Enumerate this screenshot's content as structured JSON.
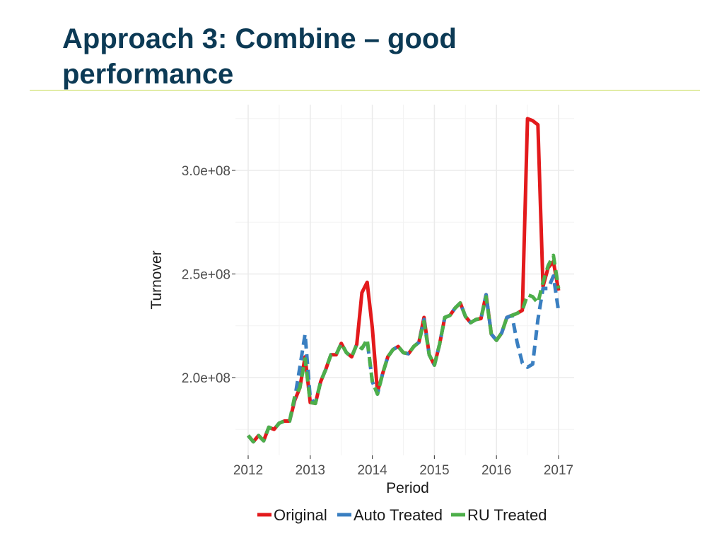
{
  "slide": {
    "title": "Approach 3: Combine – good performance"
  },
  "colors": {
    "title": "#0c3a55",
    "rule": "#c5d94f",
    "original": "#e31a1c",
    "auto_treated": "#3a7fc1",
    "ru_treated": "#4daf4a"
  },
  "chart_data": {
    "type": "line",
    "xlabel": "Period",
    "ylabel": "Turnover",
    "xlim": [
      2012,
      2017.05
    ],
    "ylim": [
      167000000,
      327000000
    ],
    "x_ticks": [
      2012,
      2013,
      2014,
      2015,
      2016,
      2017
    ],
    "x_tick_labels": [
      "2012",
      "2013",
      "2014",
      "2015",
      "2016",
      "2017"
    ],
    "y_ticks": [
      200000000,
      250000000,
      300000000
    ],
    "y_tick_labels": [
      "2.0e+08",
      "2.5e+08",
      "3.0e+08"
    ],
    "grid": true,
    "legend_position": "bottom",
    "x": [
      2012.0,
      2012.083,
      2012.167,
      2012.25,
      2012.333,
      2012.417,
      2012.5,
      2012.583,
      2012.667,
      2012.75,
      2012.833,
      2012.917,
      2013.0,
      2013.083,
      2013.167,
      2013.25,
      2013.333,
      2013.417,
      2013.5,
      2013.583,
      2013.667,
      2013.75,
      2013.833,
      2013.917,
      2014.0,
      2014.083,
      2014.167,
      2014.25,
      2014.333,
      2014.417,
      2014.5,
      2014.583,
      2014.667,
      2014.75,
      2014.833,
      2014.917,
      2015.0,
      2015.083,
      2015.167,
      2015.25,
      2015.333,
      2015.417,
      2015.5,
      2015.583,
      2015.667,
      2015.75,
      2015.833,
      2015.917,
      2016.0,
      2016.083,
      2016.167,
      2016.25,
      2016.333,
      2016.417,
      2016.5,
      2016.583,
      2016.667,
      2016.75,
      2016.833,
      2016.917,
      2017.0
    ],
    "series": [
      {
        "name": "Original",
        "color": "#e31a1c",
        "dash": "solid",
        "values": [
          172000000,
          169000000,
          172000000,
          169500000,
          176000000,
          175000000,
          178000000,
          179000000,
          179000000,
          189000000,
          195000000,
          210000000,
          188000000,
          187500000,
          198000000,
          204000000,
          211000000,
          211000000,
          216500000,
          212000000,
          210000000,
          216000000,
          241000000,
          246000000,
          224000000,
          193000000,
          202000000,
          210000000,
          213500000,
          215000000,
          212000000,
          211500000,
          215000000,
          217000000,
          229000000,
          211000000,
          206000000,
          216000000,
          229000000,
          230000000,
          233500000,
          236000000,
          229500000,
          226500000,
          228000000,
          228500000,
          240000000,
          221000000,
          218000000,
          221500000,
          229000000,
          230000000,
          231000000,
          232500000,
          325000000,
          324000000,
          322000000,
          244000000,
          253000000,
          256000000,
          242000000
        ]
      },
      {
        "name": "Auto Treated",
        "color": "#3a7fc1",
        "dash": "dashed",
        "values": [
          172000000,
          169000000,
          172000000,
          169500000,
          176000000,
          175000000,
          178000000,
          179000000,
          179000000,
          190000000,
          205000000,
          221000000,
          190000000,
          187500000,
          198000000,
          204000000,
          211000000,
          211000000,
          216500000,
          212000000,
          210000000,
          216000000,
          214000000,
          218000000,
          198000000,
          192000000,
          202000000,
          210000000,
          213500000,
          215000000,
          212000000,
          211500000,
          215000000,
          217000000,
          228000000,
          211000000,
          206000000,
          216000000,
          229000000,
          230000000,
          233500000,
          236000000,
          229500000,
          226500000,
          228000000,
          228500000,
          240000000,
          221000000,
          218000000,
          221500000,
          229000000,
          230000000,
          217000000,
          207000000,
          205000000,
          206500000,
          228000000,
          243000000,
          243000000,
          249000000,
          232000000
        ]
      },
      {
        "name": "RU Treated",
        "color": "#4daf4a",
        "dash": "dashed",
        "values": [
          172000000,
          169000000,
          172000000,
          169500000,
          176000000,
          175000000,
          178000000,
          179000000,
          179000000,
          191000000,
          195000000,
          209000000,
          188000000,
          187500000,
          198000000,
          204000000,
          211000000,
          211000000,
          216500000,
          212000000,
          210000000,
          216000000,
          214000000,
          218500000,
          198000000,
          192000000,
          202000000,
          210000000,
          213500000,
          215000000,
          212000000,
          211500000,
          215000000,
          217000000,
          227000000,
          211000000,
          206000000,
          216000000,
          229000000,
          230000000,
          233500000,
          236000000,
          229500000,
          226500000,
          228000000,
          228500000,
          239000000,
          221000000,
          218000000,
          221500000,
          229000000,
          230000000,
          231000000,
          232500000,
          240000000,
          239000000,
          236000000,
          246000000,
          254000000,
          259000000,
          243000000
        ]
      }
    ]
  }
}
